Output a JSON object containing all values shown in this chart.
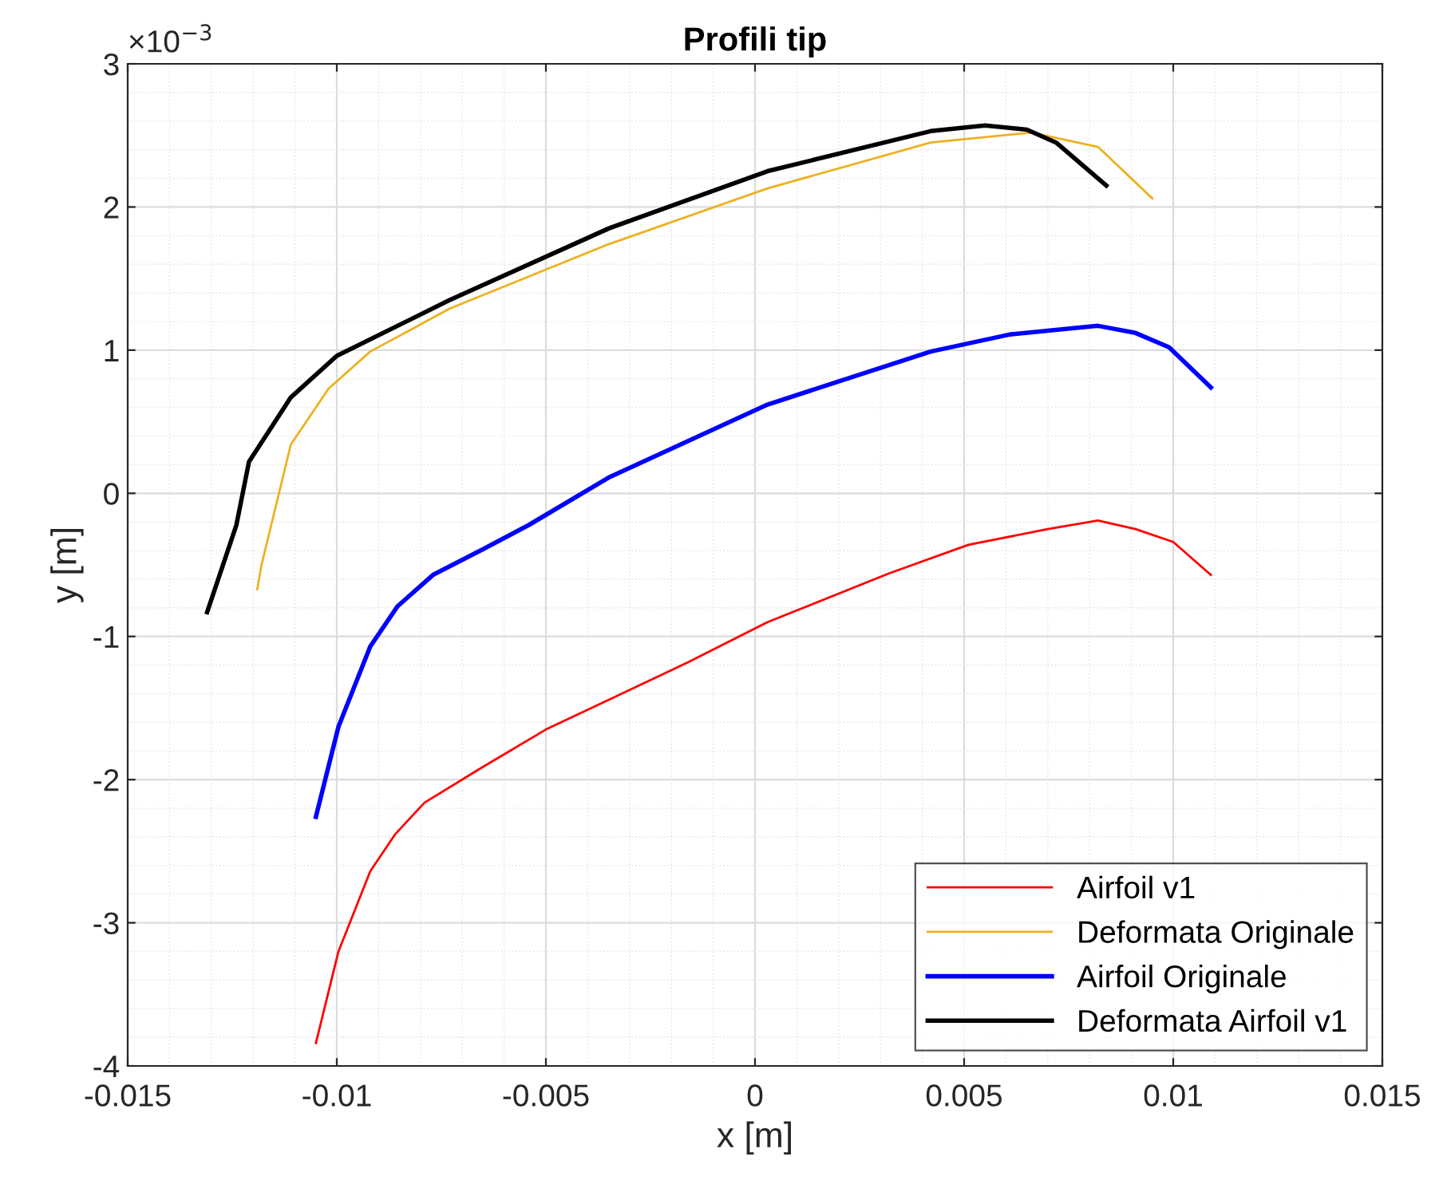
{
  "chart_data": {
    "type": "line",
    "title": "Profili tip",
    "xlabel": "x [m]",
    "ylabel": "y [m]",
    "annotations": [
      "×10$^{−3}$"
    ],
    "series": [
      {
        "name": "Airfoil v1",
        "color": "#ff0000",
        "x": [
          -0.0105,
          -0.00996,
          -0.0092,
          -0.0086,
          -0.0079,
          -0.0065,
          -0.005,
          -0.0016,
          0.0003,
          0.0032,
          0.0051,
          0.007,
          0.0082,
          0.0091,
          0.01,
          0.0109
        ],
        "values": [
          -3.84,
          -3.2,
          -2.64,
          -2.38,
          -2.16,
          -1.91,
          -1.65,
          -1.18,
          -0.9,
          -0.56,
          -0.36,
          -0.25,
          -0.19,
          -0.25,
          -0.34,
          -0.57
        ]
      },
      {
        "name": "Deformata Originale",
        "color": "#edb120",
        "x": [
          -0.0119,
          -0.0118,
          -0.0111,
          -0.0102,
          -0.0092,
          -0.0073,
          -0.0035,
          0.0003,
          0.0042,
          0.0066,
          0.0082,
          0.0095
        ],
        "values": [
          -0.67,
          -0.5,
          0.34,
          0.73,
          0.99,
          1.29,
          1.74,
          2.13,
          2.45,
          2.52,
          2.42,
          2.06
        ]
      },
      {
        "name": "Airfoil Originale",
        "color": "#0000ff",
        "x": [
          -0.0105,
          -0.00996,
          -0.0092,
          -0.00855,
          -0.0077,
          -0.0065,
          -0.0054,
          -0.0035,
          0.0003,
          0.0042,
          0.0061,
          0.0082,
          0.0091,
          0.0099,
          0.0109
        ],
        "values": [
          -2.26,
          -1.63,
          -1.07,
          -0.79,
          -0.57,
          -0.39,
          -0.22,
          0.11,
          0.62,
          0.99,
          1.11,
          1.17,
          1.12,
          1.02,
          0.74
        ]
      },
      {
        "name": "Deformata Airfoil v1",
        "color": "#000000",
        "x": [
          -0.0131,
          -0.0124,
          -0.0121,
          -0.0111,
          -0.01,
          -0.0073,
          -0.0035,
          0.0003,
          0.0042,
          0.0055,
          0.0065,
          0.0072,
          0.0084
        ],
        "values": [
          -0.83,
          -0.22,
          0.22,
          0.67,
          0.96,
          1.35,
          1.85,
          2.25,
          2.53,
          2.57,
          2.54,
          2.45,
          2.15
        ]
      }
    ],
    "xlim": [
      -0.015,
      0.015
    ],
    "xticks": [
      {
        "value": -0.015,
        "label": "-0.015"
      },
      {
        "value": -0.01,
        "label": "-0.01"
      },
      {
        "value": -0.005,
        "label": "-0.005"
      },
      0,
      0.005,
      0.01,
      0.015
    ],
    "ylim": [
      -4,
      3
    ],
    "yticks": [
      {
        "value": -4,
        "label": "-4"
      },
      {
        "value": -3,
        "label": "-3"
      },
      {
        "value": -2,
        "label": "-2"
      },
      {
        "value": -1,
        "label": "-1"
      },
      0,
      1,
      2,
      3
    ],
    "grid": true,
    "legend": "bottom right",
    "line_style": "solid",
    "marker": "none"
  }
}
